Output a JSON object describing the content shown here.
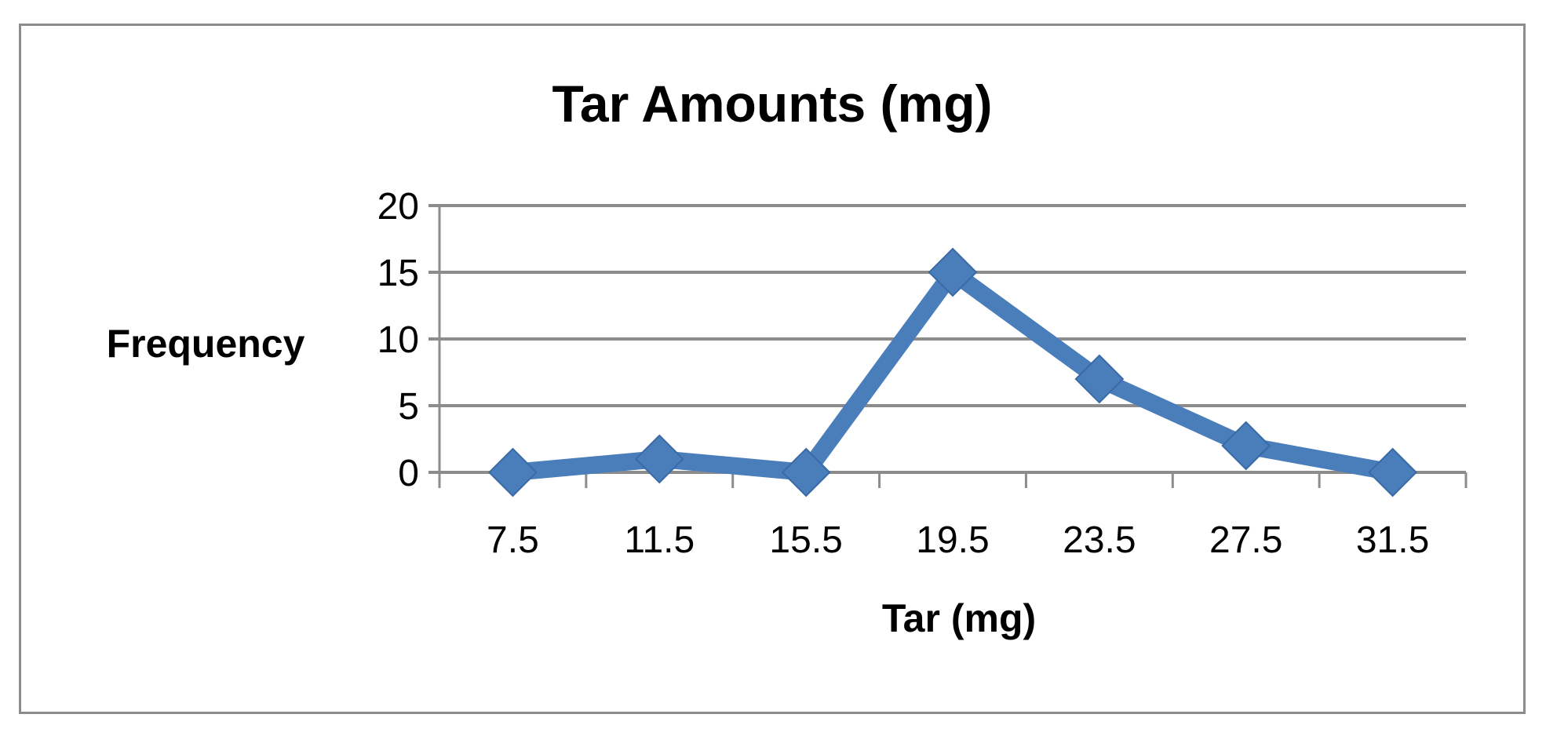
{
  "chart_data": {
    "type": "line",
    "title": "Tar Amounts (mg)",
    "xlabel": "Tar (mg)",
    "ylabel": "Frequency",
    "categories": [
      "7.5",
      "11.5",
      "15.5",
      "19.5",
      "23.5",
      "27.5",
      "31.5"
    ],
    "series": [
      {
        "values": [
          0,
          1,
          0,
          15,
          7,
          2,
          0
        ],
        "color": "#4a7ebb",
        "marker": "diamond"
      }
    ],
    "ylim": [
      0,
      20
    ],
    "yticks": [
      "0",
      "5",
      "10",
      "15",
      "20"
    ],
    "grid": true,
    "legend": "none"
  }
}
